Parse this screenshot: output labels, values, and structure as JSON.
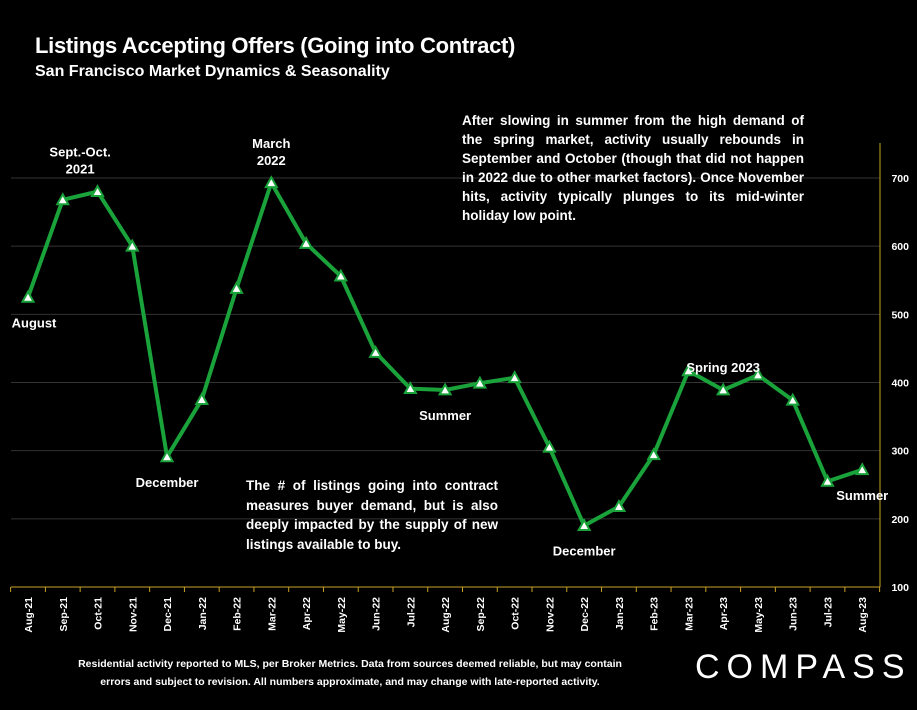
{
  "header": {
    "title": "Listings Accepting Offers (Going into Contract)",
    "subtitle": "San Francisco Market Dynamics & Seasonality"
  },
  "notes": {
    "top": "After slowing in summer from the high demand of the spring market, activity usually rebounds in September and October (though that did not happen in 2022 due to other market factors). Once November hits, activity typically plunges to its mid-winter holiday low point.",
    "bottom": "The # of listings going into contract measures buyer demand, but is also deeply impacted by the supply of new listings available to buy."
  },
  "footer": {
    "line1": "Residential activity reported to MLS, per Broker Metrics. Data from sources deemed reliable, but may contain",
    "line2": "errors and subject to revision. All numbers approximate, and may change with late-reported activity."
  },
  "logo": "COMPASS",
  "colors": {
    "line": "#1aa33a",
    "marker_fill": "#ffffff",
    "axis": "#c9a227",
    "grid": "#333333",
    "background": "#000000"
  },
  "chart_data": {
    "type": "line",
    "categories": [
      "Aug-21",
      "Sep-21",
      "Oct-21",
      "Nov-21",
      "Dec-21",
      "Jan-22",
      "Feb-22",
      "Mar-22",
      "Apr-22",
      "May-22",
      "Jun-22",
      "Jul-22",
      "Aug-22",
      "Sep-22",
      "Oct-22",
      "Nov-22",
      "Dec-22",
      "Jan-23",
      "Feb-23",
      "Mar-23",
      "Apr-23",
      "May-23",
      "Jun-23",
      "Jul-23",
      "Aug-23"
    ],
    "values": [
      525,
      668,
      680,
      600,
      291,
      375,
      538,
      693,
      604,
      556,
      444,
      391,
      389,
      399,
      407,
      305,
      190,
      218,
      294,
      417,
      389,
      411,
      374,
      255,
      272
    ],
    "ylim": [
      100,
      700
    ],
    "yticks": [
      100,
      200,
      300,
      400,
      500,
      600,
      700
    ],
    "y_axis_side": "right",
    "grid": true,
    "annotations": [
      {
        "lines": [
          "August"
        ],
        "index": 0,
        "pos": "below"
      },
      {
        "lines": [
          "Sept.-Oct.",
          "2021"
        ],
        "index": 1.5,
        "pos": "above"
      },
      {
        "lines": [
          "December"
        ],
        "index": 4,
        "pos": "below"
      },
      {
        "lines": [
          "March",
          "2022"
        ],
        "index": 7,
        "pos": "above"
      },
      {
        "lines": [
          "Summer"
        ],
        "index": 12,
        "pos": "below"
      },
      {
        "lines": [
          "December"
        ],
        "index": 16,
        "pos": "below"
      },
      {
        "lines": [
          "Spring 2023"
        ],
        "index": 20,
        "pos": "above"
      },
      {
        "lines": [
          "Summer"
        ],
        "index": 24,
        "pos": "below"
      }
    ]
  }
}
